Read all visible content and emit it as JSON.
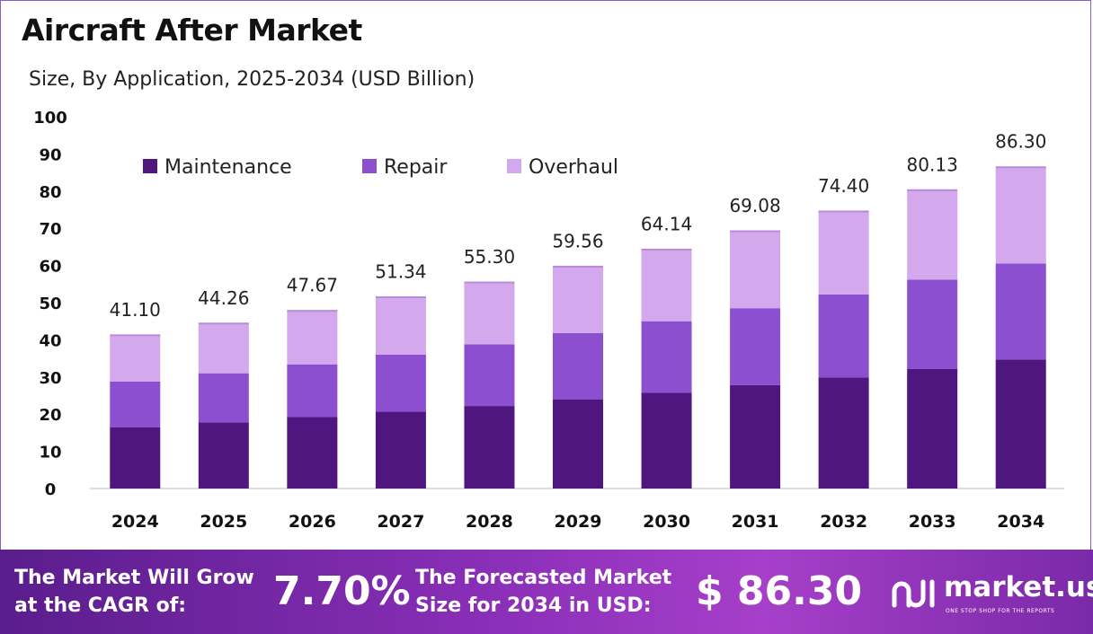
{
  "header": {
    "title": "Aircraft After Market",
    "subtitle": "Size, By Application, 2025-2034 (USD Billion)"
  },
  "colors": {
    "maintenance": "#4f1680",
    "repair": "#8b4fcf",
    "overhaul": "#d4a8ec",
    "footer_start": "#5a1d8c",
    "footer_end": "#a63fc9"
  },
  "chart_data": {
    "type": "bar",
    "stacked": true,
    "title": "Aircraft After Market",
    "subtitle": "Size, By Application, 2025-2034 (USD Billion)",
    "categories": [
      "2024",
      "2025",
      "2026",
      "2027",
      "2028",
      "2029",
      "2030",
      "2031",
      "2032",
      "2033",
      "2034"
    ],
    "series": [
      {
        "name": "Maintenance",
        "color": "#4f1680",
        "values": [
          16.5,
          17.8,
          19.2,
          20.7,
          22.2,
          24.0,
          25.8,
          27.8,
          29.9,
          32.2,
          34.7
        ]
      },
      {
        "name": "Repair",
        "color": "#8b4fcf",
        "values": [
          12.3,
          13.2,
          14.2,
          15.3,
          16.6,
          17.8,
          19.2,
          20.7,
          22.3,
          24.0,
          25.8
        ]
      },
      {
        "name": "Overhaul",
        "color": "#d4a8ec",
        "values": [
          12.3,
          13.26,
          14.27,
          15.34,
          16.5,
          17.76,
          19.14,
          20.58,
          22.2,
          23.93,
          25.8
        ]
      }
    ],
    "totals": [
      "41.10",
      "44.26",
      "47.67",
      "51.34",
      "55.30",
      "59.56",
      "64.14",
      "69.08",
      "74.40",
      "80.13",
      "86.30"
    ],
    "yticks": [
      "0",
      "10",
      "20",
      "30",
      "40",
      "50",
      "60",
      "70",
      "80",
      "90",
      "100"
    ],
    "ylim": [
      0,
      100
    ],
    "legend_position": "top-left",
    "grid": false
  },
  "footer": {
    "cagr_label_line1": "The Market Will Grow",
    "cagr_label_line2": "at the CAGR of:",
    "cagr_value": "7.70%",
    "forecast_label_line1": "The Forecasted Market",
    "forecast_label_line2": "Size for 2034 in USD:",
    "forecast_value": "$ 86.30",
    "brand_name": "market.us",
    "brand_tagline": "ONE STOP SHOP FOR THE REPORTS"
  }
}
